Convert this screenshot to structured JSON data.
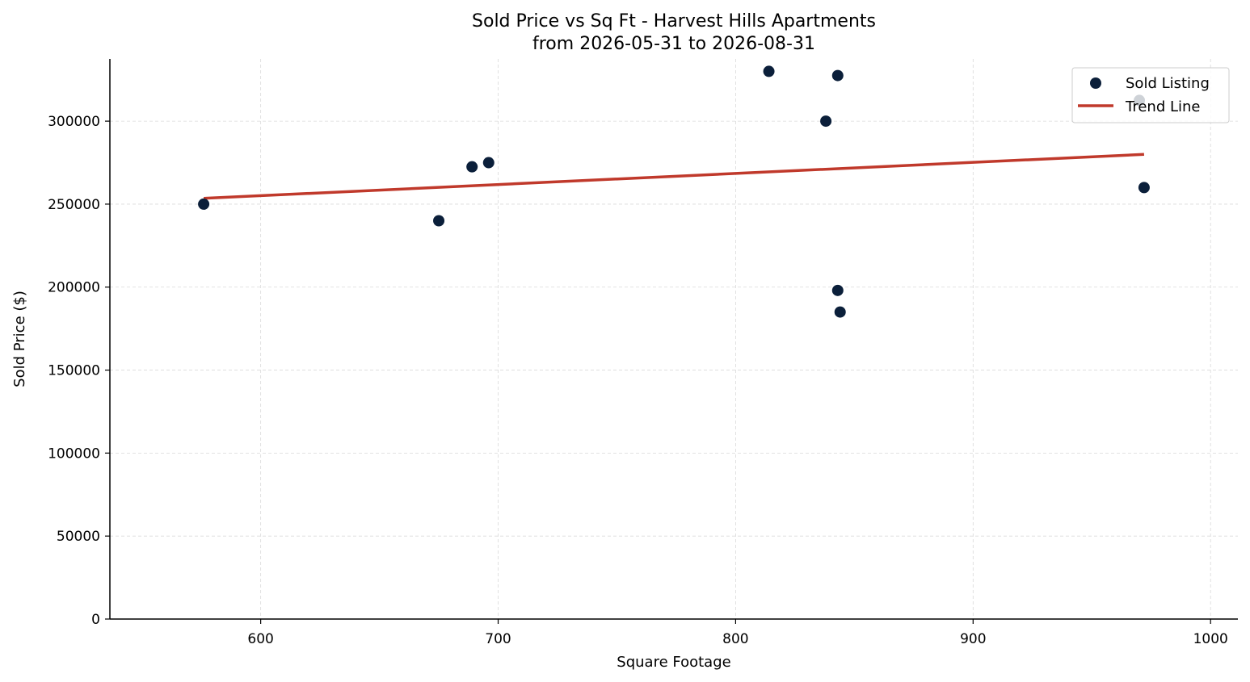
{
  "chart_data": {
    "type": "scatter",
    "title": "Sold Price vs Sq Ft - Harvest Hills Apartments",
    "subtitle": "from 2026-05-31 to 2026-08-31",
    "xlabel": "Square Footage",
    "ylabel": "Sold Price ($)",
    "xlim": [
      536.5,
      1011.5
    ],
    "ylim": [
      0,
      337500
    ],
    "xticks": [
      600,
      700,
      800,
      900,
      1000
    ],
    "yticks": [
      0,
      50000,
      100000,
      150000,
      200000,
      250000,
      300000
    ],
    "grid": true,
    "legend_position": "top-right",
    "series": [
      {
        "name": "Sold Listing",
        "kind": "scatter",
        "color": "#0b1f3a",
        "points": [
          {
            "x": 576,
            "y": 250000
          },
          {
            "x": 675,
            "y": 240000
          },
          {
            "x": 689,
            "y": 272500
          },
          {
            "x": 696,
            "y": 275000
          },
          {
            "x": 814,
            "y": 330000
          },
          {
            "x": 838,
            "y": 300000
          },
          {
            "x": 843,
            "y": 327500
          },
          {
            "x": 843,
            "y": 198000
          },
          {
            "x": 844,
            "y": 185000
          },
          {
            "x": 970,
            "y": 312500
          },
          {
            "x": 972,
            "y": 260000
          }
        ]
      },
      {
        "name": "Trend Line",
        "kind": "line",
        "color": "#c0392b",
        "points": [
          {
            "x": 576,
            "y": 253500
          },
          {
            "x": 972,
            "y": 280000
          }
        ]
      }
    ]
  }
}
